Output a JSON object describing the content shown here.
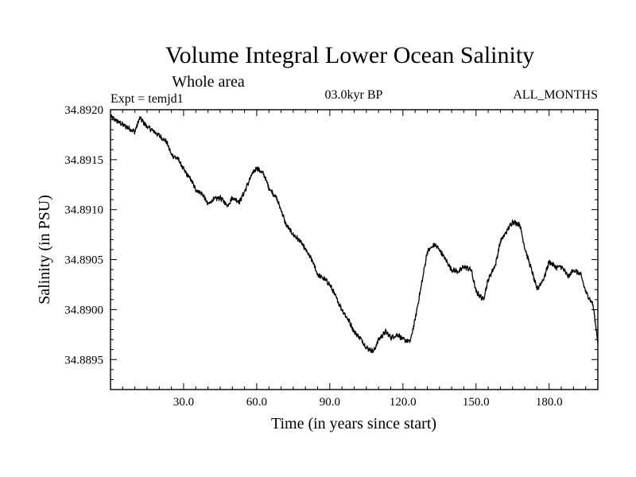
{
  "chart_data": {
    "type": "line",
    "title": "Volume Integral Lower Ocean Salinity",
    "subtitle": "Whole area",
    "annotations": {
      "left": "Expt = temjd1",
      "center": "03.0kyr BP",
      "right": "ALL_MONTHS"
    },
    "xlabel": "Time (in years since start)",
    "ylabel": "Salinity (in PSU)",
    "xlim": [
      0,
      200
    ],
    "ylim": [
      34.8892,
      34.892
    ],
    "x_ticks": [
      30,
      60,
      90,
      120,
      150,
      180
    ],
    "x_tick_labels": [
      "30.0",
      "60.0",
      "90.0",
      "120.0",
      "150.0",
      "180.0"
    ],
    "y_ticks": [
      34.8895,
      34.89,
      34.8905,
      34.891,
      34.8915,
      34.892
    ],
    "y_tick_labels": [
      "34.8895",
      "34.8900",
      "34.8905",
      "34.8910",
      "34.8915",
      "34.8920"
    ],
    "grid": false,
    "series": [
      {
        "name": "Salinity",
        "color": "#000000",
        "x": [
          0,
          5,
          10,
          12,
          15,
          18,
          20,
          23,
          25,
          28,
          30,
          33,
          35,
          38,
          40,
          42,
          45,
          48,
          50,
          53,
          55,
          58,
          60,
          63,
          65,
          68,
          70,
          72,
          75,
          78,
          80,
          83,
          85,
          88,
          90,
          93,
          95,
          98,
          100,
          103,
          105,
          108,
          110,
          113,
          115,
          118,
          120,
          123,
          125,
          128,
          130,
          133,
          135,
          138,
          140,
          143,
          145,
          148,
          150,
          153,
          155,
          158,
          160,
          163,
          165,
          168,
          170,
          173,
          175,
          178,
          180,
          183,
          185,
          188,
          190,
          193,
          195,
          198,
          200
        ],
        "values": [
          34.89193,
          34.89185,
          34.89178,
          34.89192,
          34.89183,
          34.89178,
          34.89174,
          34.89168,
          34.89155,
          34.8915,
          34.8914,
          34.8913,
          34.8912,
          34.89115,
          34.89105,
          34.8911,
          34.89112,
          34.89104,
          34.89112,
          34.89108,
          34.89118,
          34.89135,
          34.89142,
          34.89135,
          34.89122,
          34.89112,
          34.891,
          34.89085,
          34.89075,
          34.89068,
          34.8906,
          34.89048,
          34.89035,
          34.8903,
          34.89025,
          34.8901,
          34.89,
          34.88988,
          34.88978,
          34.8897,
          34.88962,
          34.88958,
          34.8897,
          34.88978,
          34.88972,
          34.88975,
          34.8897,
          34.88968,
          34.8899,
          34.8903,
          34.89058,
          34.89065,
          34.8906,
          34.89048,
          34.8904,
          34.89038,
          34.89043,
          34.8904,
          34.89018,
          34.8901,
          34.8903,
          34.89045,
          34.89068,
          34.8908,
          34.89088,
          34.89085,
          34.89062,
          34.89038,
          34.8902,
          34.89032,
          34.89048,
          34.89042,
          34.89043,
          34.89033,
          34.8904,
          34.89035,
          34.89018,
          34.89005,
          34.88968
        ]
      }
    ]
  }
}
